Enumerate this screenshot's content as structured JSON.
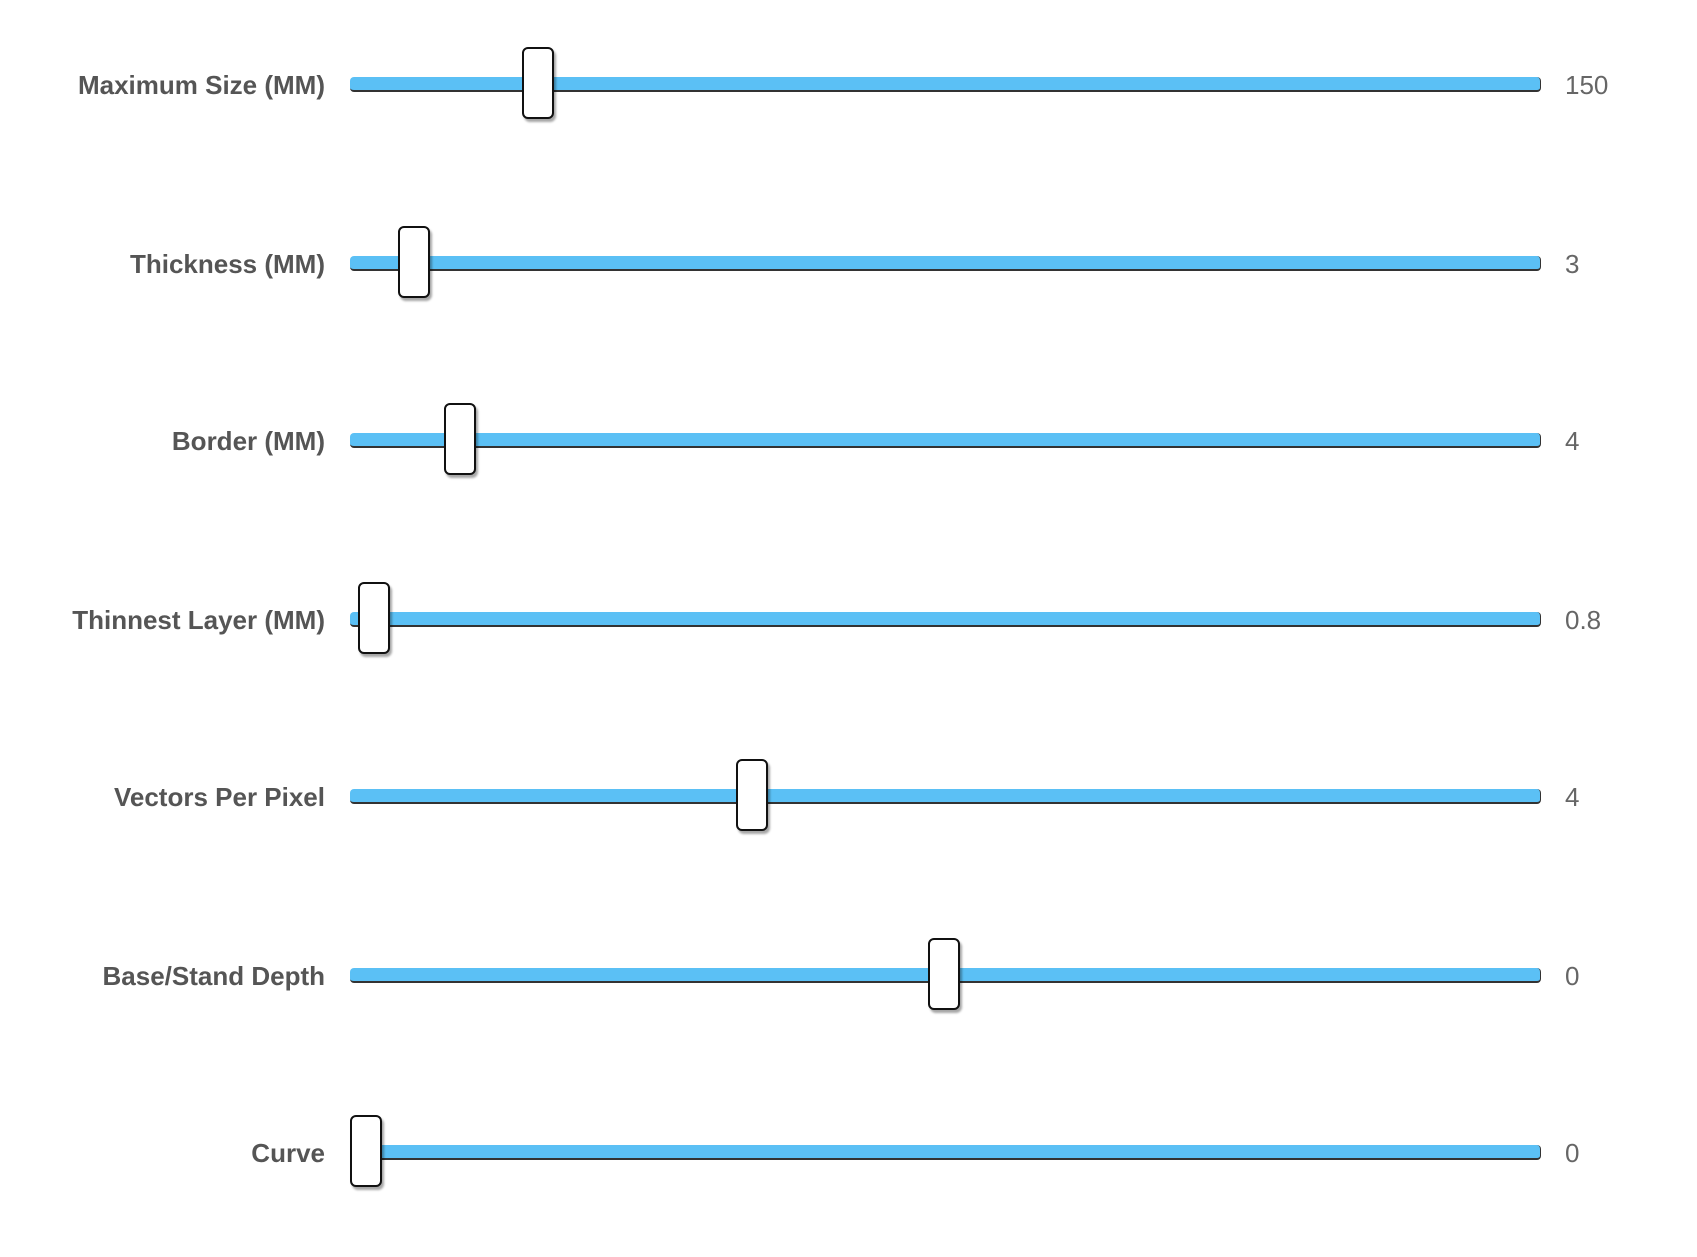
{
  "sliders": [
    {
      "label": "Maximum Size (MM)",
      "value": 150
    },
    {
      "label": "Thickness (MM)",
      "value": 3
    },
    {
      "label": "Border (MM)",
      "value": 4
    },
    {
      "label": "Thinnest Layer (MM)",
      "value": 0.8
    },
    {
      "label": "Vectors Per Pixel",
      "value": 4
    },
    {
      "label": "Base/Stand Depth",
      "value": 0
    },
    {
      "label": "Curve",
      "value": 0
    }
  ]
}
